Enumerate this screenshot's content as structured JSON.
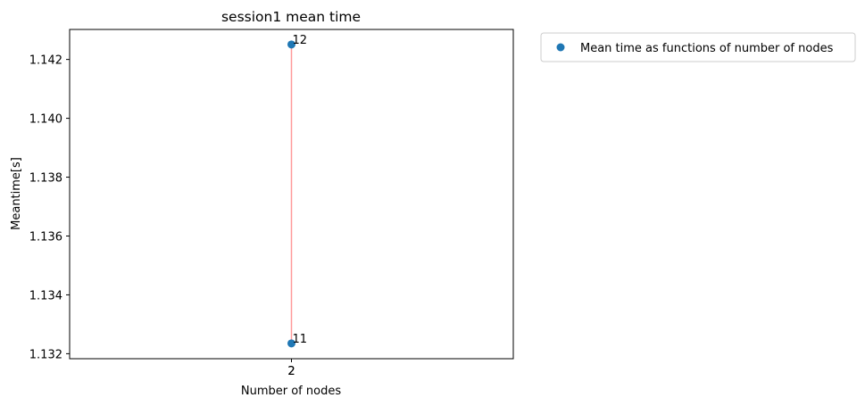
{
  "chart_data": {
    "type": "scatter",
    "title": "session1 mean time",
    "xlabel": "Number of nodes",
    "ylabel": "Meantime[s]",
    "xlim": [
      1.0,
      3.0
    ],
    "ylim": [
      1.13183,
      1.14302
    ],
    "x_ticks": [
      {
        "value": 2,
        "label": "2"
      },
      {
        "value": 2,
        "label": "2"
      }
    ],
    "y_ticks": [
      {
        "value": 1.132,
        "label": "1.132"
      },
      {
        "value": 1.134,
        "label": "1.134"
      },
      {
        "value": 1.136,
        "label": "1.136"
      },
      {
        "value": 1.138,
        "label": "1.138"
      },
      {
        "value": 1.14,
        "label": "1.140"
      },
      {
        "value": 1.142,
        "label": "1.142"
      }
    ],
    "grid": false,
    "legend_placement": "outside top-right",
    "series": [
      {
        "name": "Mean time as functions of number of nodes",
        "color": "#1f77b4",
        "points": [
          {
            "x": 2,
            "y": 1.14251,
            "label": "12"
          },
          {
            "x": 2,
            "y": 1.13235,
            "label": "11"
          }
        ]
      }
    ],
    "connector": {
      "color": "#ff9999",
      "from_y": 1.13235,
      "to_y": 1.14251
    }
  }
}
